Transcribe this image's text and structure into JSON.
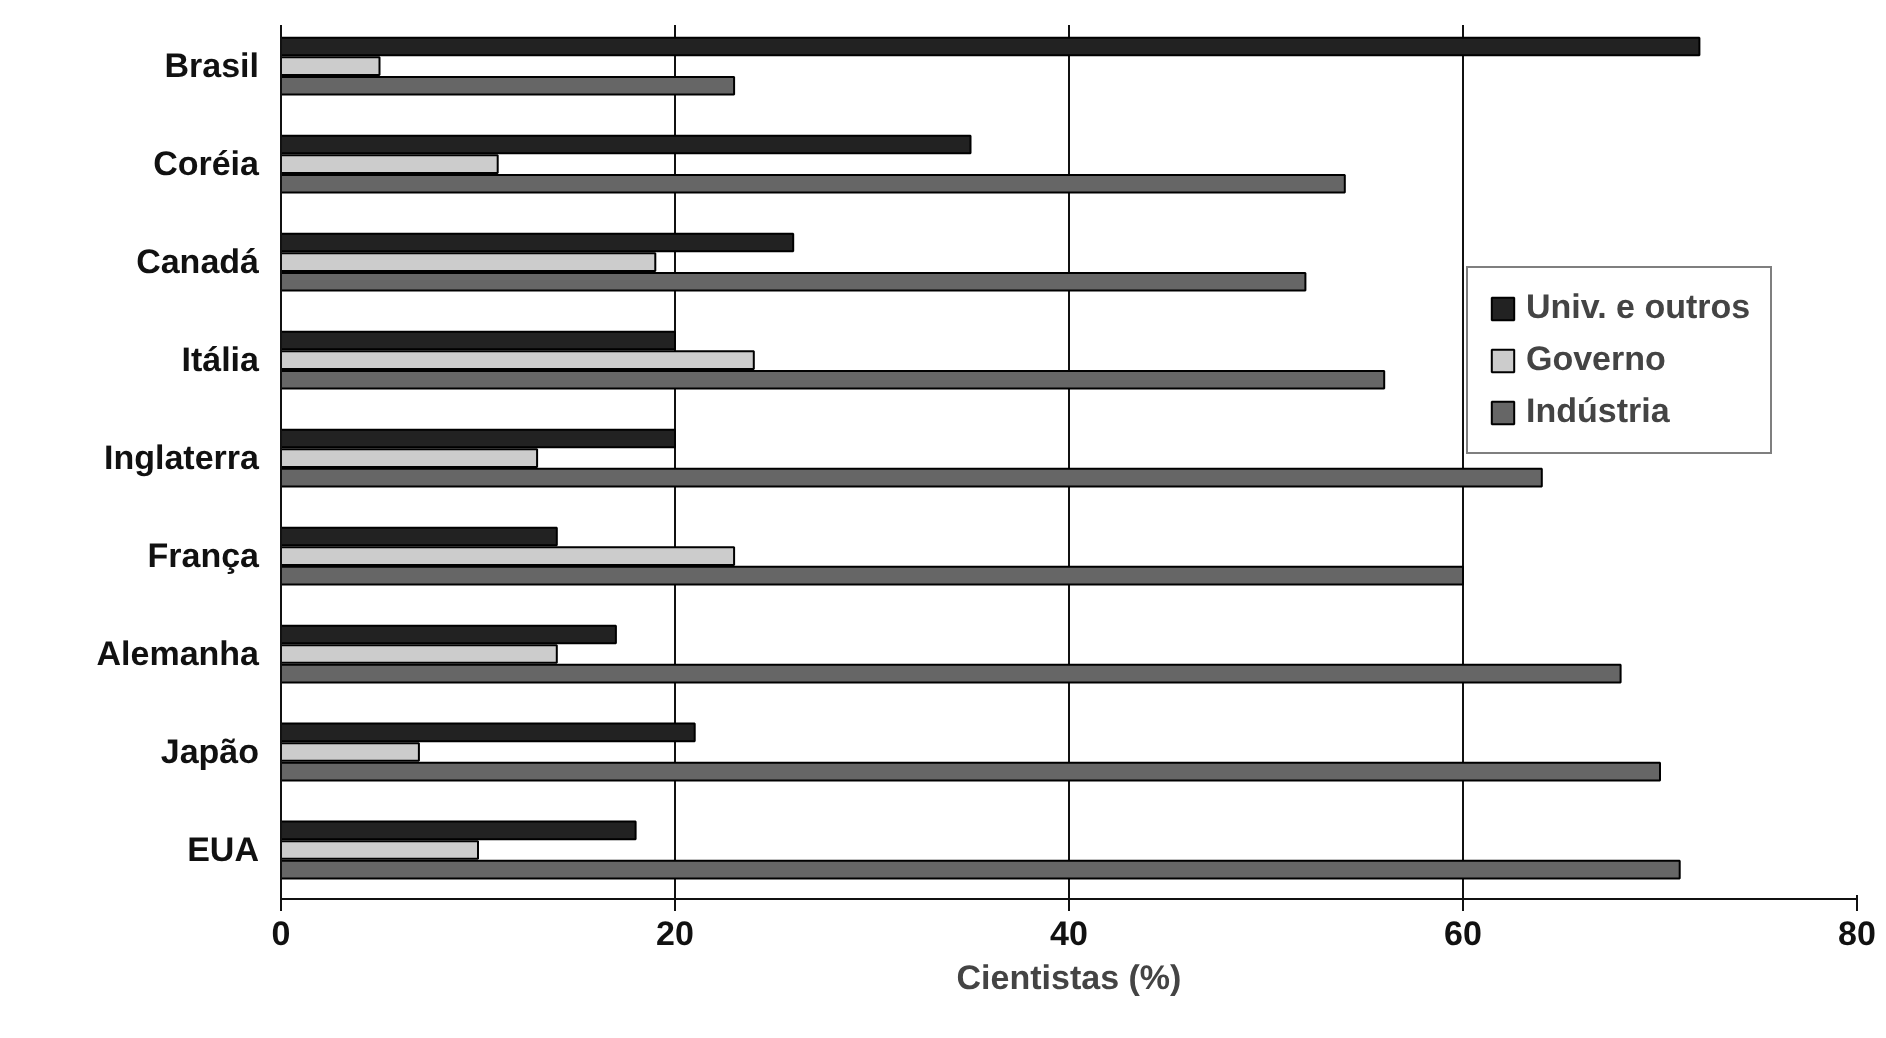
{
  "chart_data": {
    "type": "bar",
    "orientation": "horizontal",
    "xlabel": "Cientistas (%)",
    "categories": [
      "Brasil",
      "Coréia",
      "Canadá",
      "Itália",
      "Inglaterra",
      "França",
      "Alemanha",
      "Japão",
      "EUA"
    ],
    "series": [
      {
        "name": "Univ. e outros",
        "color": "#222222",
        "values": [
          72,
          35,
          26,
          20,
          20,
          14,
          17,
          21,
          18
        ]
      },
      {
        "name": "Governo",
        "color": "#cccccc",
        "values": [
          5,
          11,
          19,
          24,
          13,
          23,
          14,
          7,
          10
        ]
      },
      {
        "name": "Indústria",
        "color": "#666666",
        "values": [
          23,
          54,
          52,
          56,
          64,
          60,
          68,
          70,
          71
        ]
      }
    ],
    "xlim": [
      0,
      80
    ],
    "xticks": [
      0,
      20,
      40,
      60,
      80
    ],
    "grid": "x",
    "legend": "top right"
  }
}
